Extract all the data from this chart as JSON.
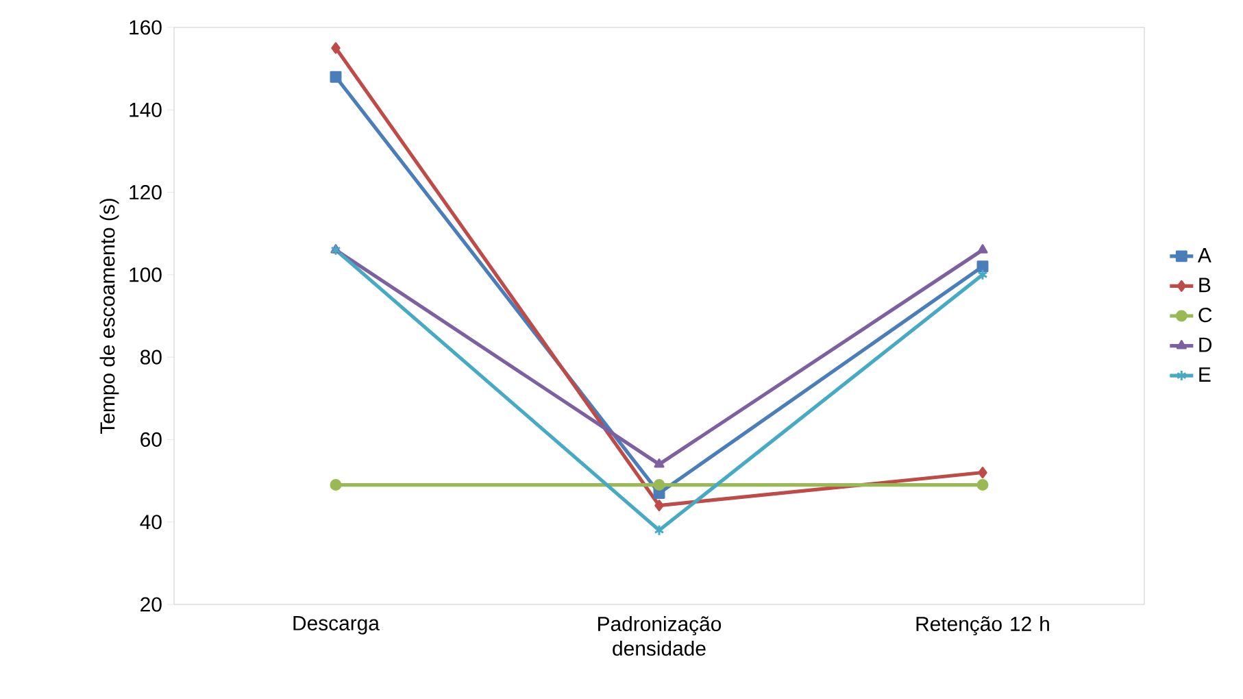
{
  "chart_data": {
    "type": "line",
    "ylabel": "Tempo de escoamento (s)",
    "categories": [
      "Descarga",
      "Padronização densidade",
      "Retenção 12 h"
    ],
    "series": [
      {
        "name": "A",
        "color": "#4a7ebb",
        "marker": "square",
        "values": [
          148,
          47,
          102
        ]
      },
      {
        "name": "B",
        "color": "#be4b48",
        "marker": "diamond",
        "values": [
          155,
          44,
          52
        ]
      },
      {
        "name": "C",
        "color": "#98b954",
        "marker": "circle",
        "values": [
          49,
          49,
          49
        ]
      },
      {
        "name": "D",
        "color": "#7d60a0",
        "marker": "triangle",
        "values": [
          106,
          54,
          106
        ]
      },
      {
        "name": "E",
        "color": "#46aac5",
        "marker": "cross",
        "values": [
          106,
          38,
          100
        ]
      }
    ],
    "ylim": [
      20,
      160
    ],
    "yticks": [
      20,
      40,
      60,
      80,
      100,
      120,
      140,
      160
    ],
    "grid": false,
    "legend": "right",
    "line_style": "solid"
  }
}
